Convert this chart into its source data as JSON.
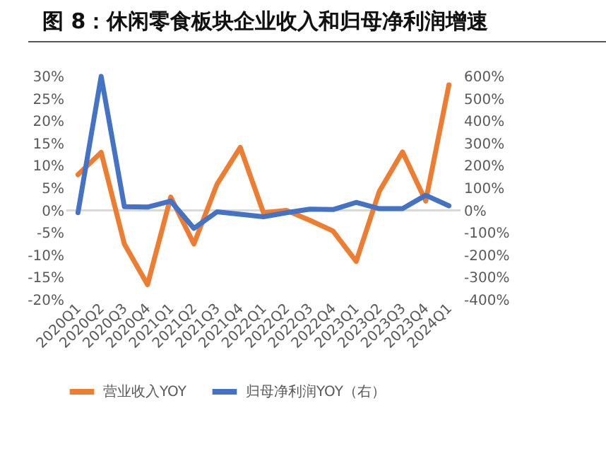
{
  "chart_data": {
    "type": "line",
    "title": "图 8：休闲零食板块企业收入和归母净利润增速",
    "categories": [
      "2020Q1",
      "2020Q2",
      "2020Q3",
      "2020Q4",
      "2021Q1",
      "2021Q2",
      "2021Q3",
      "2021Q4",
      "2022Q1",
      "2022Q2",
      "2022Q3",
      "2022Q4",
      "2023Q1",
      "2023Q2",
      "2023Q3",
      "2023Q4",
      "2024Q1"
    ],
    "series": [
      {
        "name": "营业收入YOY",
        "color": "#ed7d31",
        "values": [
          8.0,
          13.0,
          -7.5,
          -16.6,
          3.0,
          -7.5,
          5.9,
          14.1,
          -0.5,
          0,
          -2.2,
          -4.6,
          -11.4,
          4.3,
          13.1,
          2.1,
          28.1
        ]
      },
      {
        "name": "归母净利润YOY（右）",
        "color": "#4472c4",
        "axis": "y2",
        "values": [
          -10,
          600,
          17,
          15,
          42,
          -80,
          -6,
          -17,
          -28,
          -10,
          6,
          4,
          36,
          8,
          8,
          68,
          21
        ]
      }
    ],
    "ylim": [
      -20,
      30
    ],
    "yticks": [
      {
        "value": 30,
        "label": "30%"
      },
      {
        "value": 25,
        "label": "25%"
      },
      {
        "value": 20,
        "label": "20%"
      },
      {
        "value": 15,
        "label": "15%"
      },
      {
        "value": 10,
        "label": "10%"
      },
      {
        "value": 5,
        "label": "5%"
      },
      {
        "value": 0,
        "label": "0%"
      },
      {
        "value": -5,
        "label": "-5%"
      },
      {
        "value": -10,
        "label": "-10%"
      },
      {
        "value": -15,
        "label": "-15%"
      },
      {
        "value": -20,
        "label": "-20%"
      }
    ],
    "y2lim": [
      -400,
      600
    ],
    "y2ticks": [
      {
        "value": 600,
        "label": "600%"
      },
      {
        "value": 500,
        "label": "500%"
      },
      {
        "value": 400,
        "label": "400%"
      },
      {
        "value": 300,
        "label": "300%"
      },
      {
        "value": 200,
        "label": "200%"
      },
      {
        "value": 100,
        "label": "100%"
      },
      {
        "value": 0,
        "label": "0%"
      },
      {
        "value": -100,
        "label": "-100%"
      },
      {
        "value": -200,
        "label": "-200%"
      },
      {
        "value": -300,
        "label": "-300%"
      },
      {
        "value": -400,
        "label": "-400%"
      }
    ],
    "ref_lines": [
      {
        "axis": "y",
        "value": 0,
        "color": "#d9d9d9"
      }
    ],
    "legend": "bottom",
    "grid": false,
    "marker": "none",
    "line_style": "solid"
  }
}
